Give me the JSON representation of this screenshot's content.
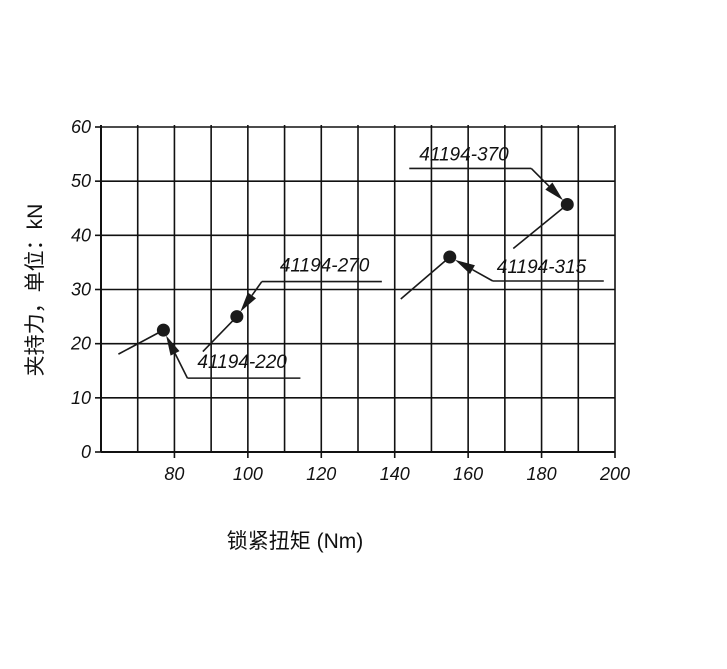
{
  "chart_data": {
    "type": "scatter",
    "x_label": "锁紧扭矩 (Nm)",
    "y_label": "夹持力，单位：kN",
    "x": [
      77,
      97,
      155,
      187
    ],
    "y": [
      22.5,
      25,
      36,
      45.7
    ],
    "point_labels": [
      "41194-220",
      "41194-270",
      "41194-315",
      "41194-370"
    ],
    "color": "#1a1a1a",
    "xlim": [
      60,
      200
    ],
    "xticks": [
      80,
      100,
      120,
      140,
      160,
      180,
      200
    ],
    "ylim": [
      0,
      60
    ],
    "yticks": [
      0,
      10,
      20,
      30,
      40,
      50,
      60
    ],
    "grid": true
  }
}
